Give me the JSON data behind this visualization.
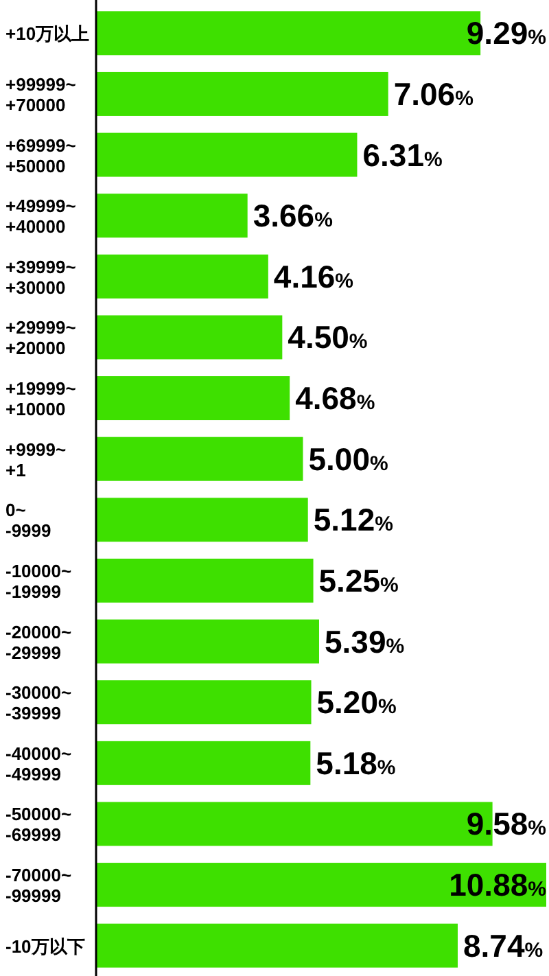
{
  "chart_data": {
    "type": "bar",
    "orientation": "horizontal",
    "color": "#3ee000",
    "categories": [
      "+10万以上",
      "+99999~\n+70000",
      "+69999~\n+50000",
      "+49999~\n+40000",
      "+39999~\n+30000",
      "+29999~\n+20000",
      "+19999~\n+10000",
      "+9999~\n+1",
      "0~\n-9999",
      "-10000~\n-19999",
      "-20000~\n-29999",
      "-30000~\n-39999",
      "-40000~\n-49999",
      "-50000~\n-69999",
      "-70000~\n-99999",
      "-10万以下"
    ],
    "values": [
      9.29,
      7.06,
      6.31,
      3.66,
      4.16,
      4.5,
      4.68,
      5.0,
      5.12,
      5.25,
      5.39,
      5.2,
      5.18,
      9.58,
      10.88,
      8.74
    ],
    "value_labels": [
      "9.29%",
      "7.06%",
      "6.31%",
      "3.66%",
      "4.16%",
      "4.50%",
      "4.68%",
      "5.00%",
      "5.12%",
      "5.25%",
      "5.39%",
      "5.20%",
      "5.18%",
      "9.58%",
      "10.88%",
      "8.74%"
    ]
  }
}
